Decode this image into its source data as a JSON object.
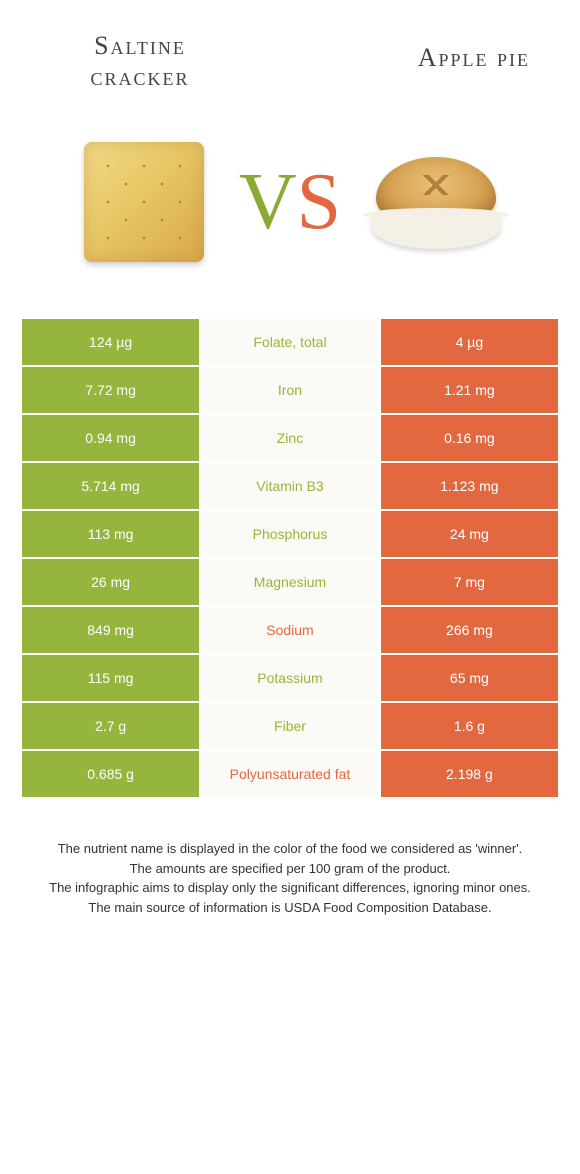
{
  "header": {
    "left_title": "Saltine cracker",
    "right_title": "Apple pie",
    "vs_v": "V",
    "vs_s": "S"
  },
  "colors": {
    "green": "#96b53c",
    "orange": "#e4683f",
    "mid_bg": "#fbfaf6",
    "white": "#ffffff"
  },
  "rows": [
    {
      "label": "Folate, total",
      "left": "124 µg",
      "right": "4 µg",
      "winner": "left"
    },
    {
      "label": "Iron",
      "left": "7.72 mg",
      "right": "1.21 mg",
      "winner": "left"
    },
    {
      "label": "Zinc",
      "left": "0.94 mg",
      "right": "0.16 mg",
      "winner": "left"
    },
    {
      "label": "Vitamin B3",
      "left": "5.714 mg",
      "right": "1.123 mg",
      "winner": "left"
    },
    {
      "label": "Phosphorus",
      "left": "113 mg",
      "right": "24 mg",
      "winner": "left"
    },
    {
      "label": "Magnesium",
      "left": "26 mg",
      "right": "7 mg",
      "winner": "left"
    },
    {
      "label": "Sodium",
      "left": "849 mg",
      "right": "266 mg",
      "winner": "right"
    },
    {
      "label": "Potassium",
      "left": "115 mg",
      "right": "65 mg",
      "winner": "left"
    },
    {
      "label": "Fiber",
      "left": "2.7 g",
      "right": "1.6 g",
      "winner": "left"
    },
    {
      "label": "Polyunsaturated fat",
      "left": "0.685 g",
      "right": "2.198 g",
      "winner": "right"
    }
  ],
  "footer": {
    "line1": "The nutrient name is displayed in the color of the food we considered as 'winner'.",
    "line2": "The amounts are specified per 100 gram of the product.",
    "line3": "The infographic aims to display only the significant differences, ignoring minor ones.",
    "line4": "The main source of information is USDA Food Composition Database."
  }
}
